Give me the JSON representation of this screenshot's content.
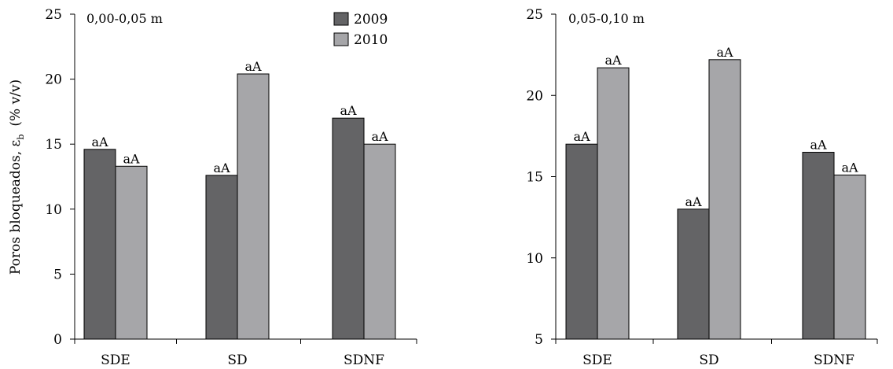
{
  "chart_data": [
    {
      "type": "bar",
      "title": "0,00-0,05 m",
      "ylabel": "Poros bloqueados, ε",
      "ylabel_sub": "b",
      "ylabel_units": "(% v/v)",
      "categories": [
        "SDE",
        "SD",
        "SDNF"
      ],
      "ylim": [
        0,
        25
      ],
      "yticks": [
        0,
        5,
        10,
        15,
        20,
        25
      ],
      "legend": "top-right",
      "grid": false,
      "series": [
        {
          "name": "2009",
          "color": "#646466",
          "values": [
            14.6,
            12.6,
            17.0
          ],
          "labels": [
            "aA",
            "aA",
            "aA"
          ]
        },
        {
          "name": "2010",
          "color": "#a6a6a9",
          "values": [
            13.3,
            20.4,
            15.0
          ],
          "labels": [
            "aA",
            "aA",
            "aA"
          ]
        }
      ]
    },
    {
      "type": "bar",
      "title": "0,05-0,10 m",
      "ylabel": "",
      "categories": [
        "SDE",
        "SD",
        "SDNF"
      ],
      "ylim": [
        5,
        25
      ],
      "yticks": [
        5,
        10,
        15,
        20,
        25
      ],
      "grid": false,
      "series": [
        {
          "name": "2009",
          "color": "#646466",
          "values": [
            17.0,
            13.0,
            16.5
          ],
          "labels": [
            "aA",
            "aA",
            "aA"
          ]
        },
        {
          "name": "2010",
          "color": "#a6a6a9",
          "values": [
            21.7,
            22.2,
            15.1
          ],
          "labels": [
            "aA",
            "aA",
            "aA"
          ]
        }
      ]
    }
  ]
}
